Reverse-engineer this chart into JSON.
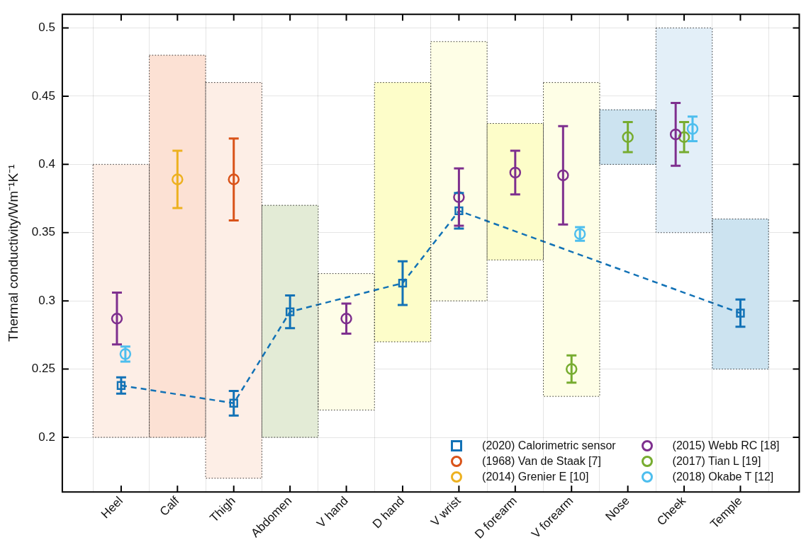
{
  "chart_data": {
    "type": "scatter",
    "ylabel": "Thermal conductivity/Wm⁻¹K⁻¹",
    "categories": [
      "Heel",
      "Calf",
      "Thigh",
      "Abdomen",
      "V hand",
      "D hand",
      "V wrist",
      "D forearm",
      "V forearm",
      "Nose",
      "Cheek",
      "Temple"
    ],
    "ylim": [
      0.16,
      0.51
    ],
    "yticks": [
      0.2,
      0.25,
      0.3,
      0.35,
      0.4,
      0.45,
      0.5
    ],
    "grid": true,
    "legend": "bottom right",
    "series": [
      {
        "type": "bar",
        "base": [
          0.2,
          0.2,
          0.17,
          0.2,
          0.22,
          0.27,
          0.3,
          0.33,
          0.23,
          0.4,
          0.35,
          0.25
        ],
        "values": [
          0.2,
          0.28,
          0.29,
          0.17,
          0.1,
          0.19,
          0.19,
          0.1,
          0.23,
          0.04,
          0.15,
          0.11
        ],
        "colors": [
          "#fdeee6",
          "#fce1d4",
          "#fdeee6",
          "#e3ebd6",
          "#fefde8",
          "#fdfdc9",
          "#fefee6",
          "#fdfdc9",
          "#fefee6",
          "#cce3f0",
          "#e3eff8",
          "#cce3f0"
        ]
      },
      {
        "type": "line",
        "name": "(2020) Calorimetric sensor",
        "color": "#1272b6",
        "marker": "square",
        "line_style": "dashed",
        "values": [
          0.238,
          null,
          0.225,
          0.292,
          null,
          0.313,
          0.366,
          null,
          null,
          null,
          null,
          0.291
        ],
        "errors": [
          0.006,
          null,
          0.009,
          0.012,
          null,
          0.016,
          0.013,
          null,
          null,
          null,
          null,
          0.01
        ]
      },
      {
        "name": "(1968) Van de Staak [7]",
        "color": "#d95319",
        "marker": "circle",
        "values": [
          null,
          null,
          0.389,
          null,
          null,
          null,
          null,
          null,
          null,
          null,
          null,
          null
        ],
        "errors": [
          null,
          null,
          0.03,
          null,
          null,
          null,
          null,
          null,
          null,
          null,
          null,
          null
        ]
      },
      {
        "name": "(2014) Grenier E [10]",
        "color": "#edb120",
        "marker": "circle",
        "values": [
          null,
          0.389,
          null,
          null,
          null,
          null,
          null,
          null,
          null,
          null,
          null,
          null
        ],
        "errors": [
          null,
          0.021,
          null,
          null,
          null,
          null,
          null,
          null,
          null,
          null,
          null,
          null
        ]
      },
      {
        "name": "(2015) Webb RC [18]",
        "color": "#7e2f8e",
        "marker": "circle",
        "values": [
          0.287,
          null,
          null,
          null,
          0.287,
          null,
          0.376,
          0.394,
          0.392,
          null,
          0.422,
          null
        ],
        "errors": [
          0.019,
          null,
          null,
          null,
          0.011,
          null,
          0.021,
          0.016,
          0.036,
          null,
          0.023,
          null
        ]
      },
      {
        "name": "(2017) Tian L [19]",
        "color": "#77ac30",
        "marker": "circle",
        "values": [
          null,
          null,
          null,
          null,
          null,
          null,
          null,
          null,
          0.25,
          0.42,
          0.42,
          null
        ],
        "errors": [
          null,
          null,
          null,
          null,
          null,
          null,
          null,
          null,
          0.01,
          0.011,
          0.011,
          null
        ]
      },
      {
        "name": "(2018) Okabe T [12]",
        "color": "#4dbeee",
        "marker": "circle",
        "values": [
          0.261,
          null,
          null,
          null,
          null,
          null,
          null,
          null,
          0.349,
          null,
          0.426,
          null
        ],
        "errors": [
          0.0055,
          null,
          null,
          null,
          null,
          null,
          null,
          null,
          0.005,
          null,
          0.009,
          null
        ]
      }
    ]
  }
}
